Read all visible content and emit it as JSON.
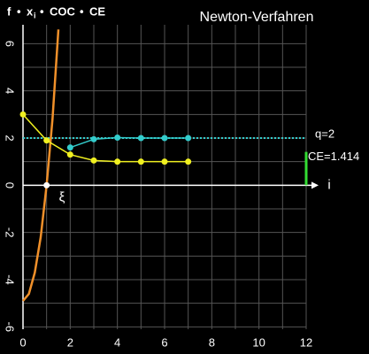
{
  "chart_data": {
    "type": "line",
    "title": "Newton-Verfahren",
    "xlabel": "i",
    "xlim": [
      0,
      12
    ],
    "ylim": [
      -6.1,
      6.8
    ],
    "xticks": [
      0,
      2,
      4,
      6,
      8,
      10,
      12
    ],
    "yticks": [
      -6,
      -4,
      -2,
      0,
      2,
      4,
      6
    ],
    "xgrid": [
      0,
      1,
      2,
      3,
      4,
      5,
      6,
      7,
      8,
      9,
      10,
      11,
      12
    ],
    "ygrid": [
      -6,
      -5,
      -4,
      -3,
      -2,
      -1,
      0,
      1,
      2,
      3,
      4,
      5,
      6
    ],
    "grid": true,
    "grid_color": "#555555",
    "legend_separator": "•",
    "series": [
      {
        "name": "f",
        "color": "#f0902a",
        "markers": false,
        "x": [
          0,
          0.25,
          0.5,
          0.75,
          1,
          1.25,
          1.5
        ],
        "values": [
          -4.9,
          -4.6,
          -3.7,
          -2.2,
          0,
          2.8,
          6.6
        ]
      },
      {
        "name": "x",
        "subscript": "i",
        "color": "#f0f020",
        "markers": true,
        "x": [
          0,
          1,
          2,
          3,
          4,
          5,
          6,
          7
        ],
        "values": [
          3,
          1.9,
          1.3,
          1.05,
          1,
          1,
          1,
          1
        ]
      },
      {
        "name": "COC",
        "color": "#33cccc",
        "markers": true,
        "x": [
          2,
          3,
          4,
          5,
          6,
          7
        ],
        "values": [
          1.6,
          1.95,
          2.02,
          2,
          2,
          2
        ]
      }
    ],
    "reference_line": {
      "value": 2,
      "label": "q=2",
      "color": "#33cccc"
    },
    "ce": {
      "name": "CE",
      "label": "CE=1.414",
      "x": 12,
      "value": 1.414,
      "color": "#33dd33"
    },
    "root": {
      "x": 1,
      "value": 0,
      "label": "ξ",
      "color": "#ffffff"
    }
  }
}
